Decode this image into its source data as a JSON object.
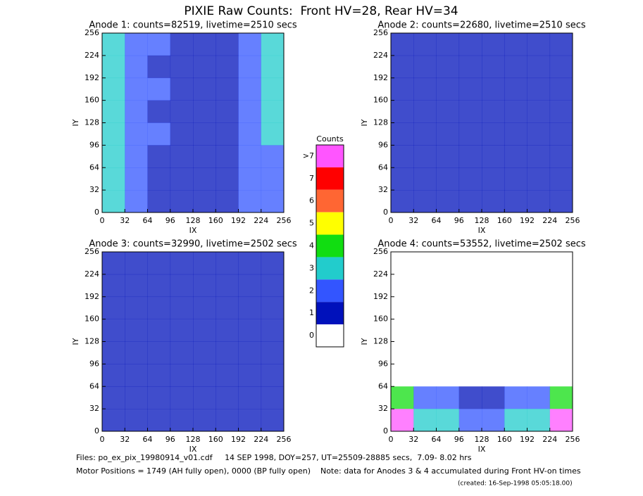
{
  "title": "PIXIE Raw Counts:  Front HV=28, Rear HV=34",
  "chart_data": [
    {
      "type": "heatmap",
      "title": "Anode 1: counts=82519, livetime=2510 secs",
      "xlabel": "IX",
      "ylabel": "IY",
      "xlim": [
        0,
        256
      ],
      "ylim": [
        0,
        256
      ],
      "xticks": [
        0,
        32,
        64,
        96,
        128,
        160,
        192,
        224,
        256
      ],
      "yticks": [
        0,
        32,
        64,
        96,
        128,
        160,
        192,
        224,
        256
      ],
      "grid": [
        [
          3,
          2,
          1.5,
          1,
          0.8,
          1,
          2,
          2.5
        ],
        [
          3,
          1.5,
          1,
          0.8,
          0.6,
          0.8,
          1.5,
          2.5
        ],
        [
          3,
          1.5,
          1.2,
          1,
          0.5,
          0.8,
          1.5,
          2.5
        ],
        [
          3,
          1.5,
          1,
          0.8,
          0.5,
          0.8,
          1.5,
          3
        ],
        [
          3,
          1.5,
          1.2,
          1,
          0.5,
          0.8,
          1.2,
          2.5
        ],
        [
          3,
          1.5,
          1,
          0.8,
          0.5,
          0.8,
          1.2,
          2
        ],
        [
          3,
          1.5,
          1,
          0.8,
          0.6,
          0.8,
          1.2,
          2
        ],
        [
          2.5,
          1.5,
          1,
          1,
          0.8,
          1,
          1.5,
          2
        ]
      ]
    },
    {
      "type": "heatmap",
      "title": "Anode 2: counts=22680, livetime=2510 secs",
      "xlabel": "IX",
      "ylabel": "IY",
      "xlim": [
        0,
        256
      ],
      "ylim": [
        0,
        256
      ],
      "xticks": [
        0,
        32,
        64,
        96,
        128,
        160,
        192,
        224,
        256
      ],
      "yticks": [
        0,
        32,
        64,
        96,
        128,
        160,
        192,
        224,
        256
      ],
      "grid": [
        [
          1,
          0.8,
          0.6,
          0.6,
          0.4,
          0.5,
          0.6,
          1
        ],
        [
          0.8,
          0.6,
          0.5,
          0.5,
          0.3,
          0.4,
          0.5,
          0.8
        ],
        [
          0.8,
          0.5,
          0.5,
          0.4,
          0.3,
          0.3,
          0.5,
          0.8
        ],
        [
          0.8,
          0.5,
          0.4,
          0.4,
          0.3,
          0.3,
          0.5,
          1
        ],
        [
          0.8,
          0.5,
          0.5,
          0.4,
          0.3,
          0.3,
          0.4,
          0.8
        ],
        [
          0.7,
          0.4,
          0.4,
          0.3,
          0.3,
          0.3,
          0.4,
          0.6
        ],
        [
          0.7,
          0.4,
          0.3,
          0.3,
          0.3,
          0.3,
          0.4,
          0.6
        ],
        [
          0.8,
          0.5,
          0.5,
          0.5,
          0.4,
          0.5,
          0.6,
          0.8
        ]
      ]
    },
    {
      "type": "heatmap",
      "title": "Anode 3: counts=32990, livetime=2502 secs",
      "xlabel": "IX",
      "ylabel": "IY",
      "xlim": [
        0,
        256
      ],
      "ylim": [
        0,
        256
      ],
      "xticks": [
        0,
        32,
        64,
        96,
        128,
        160,
        192,
        224,
        256
      ],
      "yticks": [
        0,
        32,
        64,
        96,
        128,
        160,
        192,
        224,
        256
      ],
      "grid": [
        [
          1,
          0.9,
          0.9,
          0.9,
          0.9,
          0.9,
          0.9,
          0.9
        ],
        [
          1,
          0.9,
          0.8,
          0.9,
          0.9,
          0.8,
          0.9,
          0.9
        ],
        [
          1,
          0.9,
          0.8,
          0.8,
          0.9,
          0.8,
          0.8,
          0.9
        ],
        [
          1,
          0.9,
          0.8,
          0.8,
          0.9,
          0.8,
          0.8,
          0.9
        ],
        [
          1,
          0.9,
          0.8,
          0.8,
          0.9,
          0.8,
          0.8,
          0.9
        ],
        [
          1,
          0.9,
          0.8,
          0.8,
          0.9,
          0.8,
          0.8,
          0.9
        ],
        [
          1,
          0.9,
          0.8,
          0.8,
          0.9,
          0.8,
          0.8,
          0.9
        ],
        [
          0.9,
          0.8,
          0.8,
          0.8,
          0.8,
          0.8,
          0.8,
          0.9
        ]
      ]
    },
    {
      "type": "heatmap",
      "title": "Anode 4: counts=53552, livetime=2502 secs",
      "xlabel": "IX",
      "ylabel": "IY",
      "xlim": [
        0,
        256
      ],
      "ylim": [
        0,
        256
      ],
      "xticks": [
        0,
        32,
        64,
        96,
        128,
        160,
        192,
        224,
        256
      ],
      "yticks": [
        0,
        32,
        64,
        96,
        128,
        160,
        192,
        224,
        256
      ],
      "grid": [
        [
          0,
          0,
          0,
          0,
          0,
          0,
          0,
          0
        ],
        [
          0,
          0,
          0,
          0,
          0,
          0,
          0,
          0
        ],
        [
          0,
          0,
          0,
          0,
          0,
          0,
          0,
          0
        ],
        [
          0,
          0,
          0,
          0,
          0,
          0,
          0,
          0
        ],
        [
          0,
          0,
          0,
          0,
          0,
          0,
          0,
          0
        ],
        [
          0,
          0,
          0,
          0,
          0,
          0,
          0,
          0
        ],
        [
          4,
          1.5,
          1.2,
          1,
          1,
          1.2,
          1.5,
          4
        ],
        [
          8,
          3,
          2.5,
          2,
          2,
          2.5,
          3,
          8
        ]
      ]
    }
  ],
  "colorbar": {
    "title": "Counts",
    "labels": [
      ">7",
      "7",
      "6",
      "5",
      "4",
      "3",
      "2",
      "1",
      "0"
    ],
    "colors": [
      "#ff55ff",
      "#ff0000",
      "#ff6633",
      "#ffff00",
      "#11dd11",
      "#22cccc",
      "#3355ff",
      "#0011bb",
      "#ffffff"
    ]
  },
  "footer": {
    "files": "Files: po_ex_pix_19980914_v01.cdf     14 SEP 1998, DOY=257, UT=25509-28885 secs,  7.09- 8.02 hrs",
    "motor": "Motor Positions = 1749 (AH fully open), 0000 (BP fully open)    Note: data for Anodes 3 & 4 accumulated during Front HV-on times",
    "created": "(created: 16-Sep-1998 05:05:18.00)"
  }
}
